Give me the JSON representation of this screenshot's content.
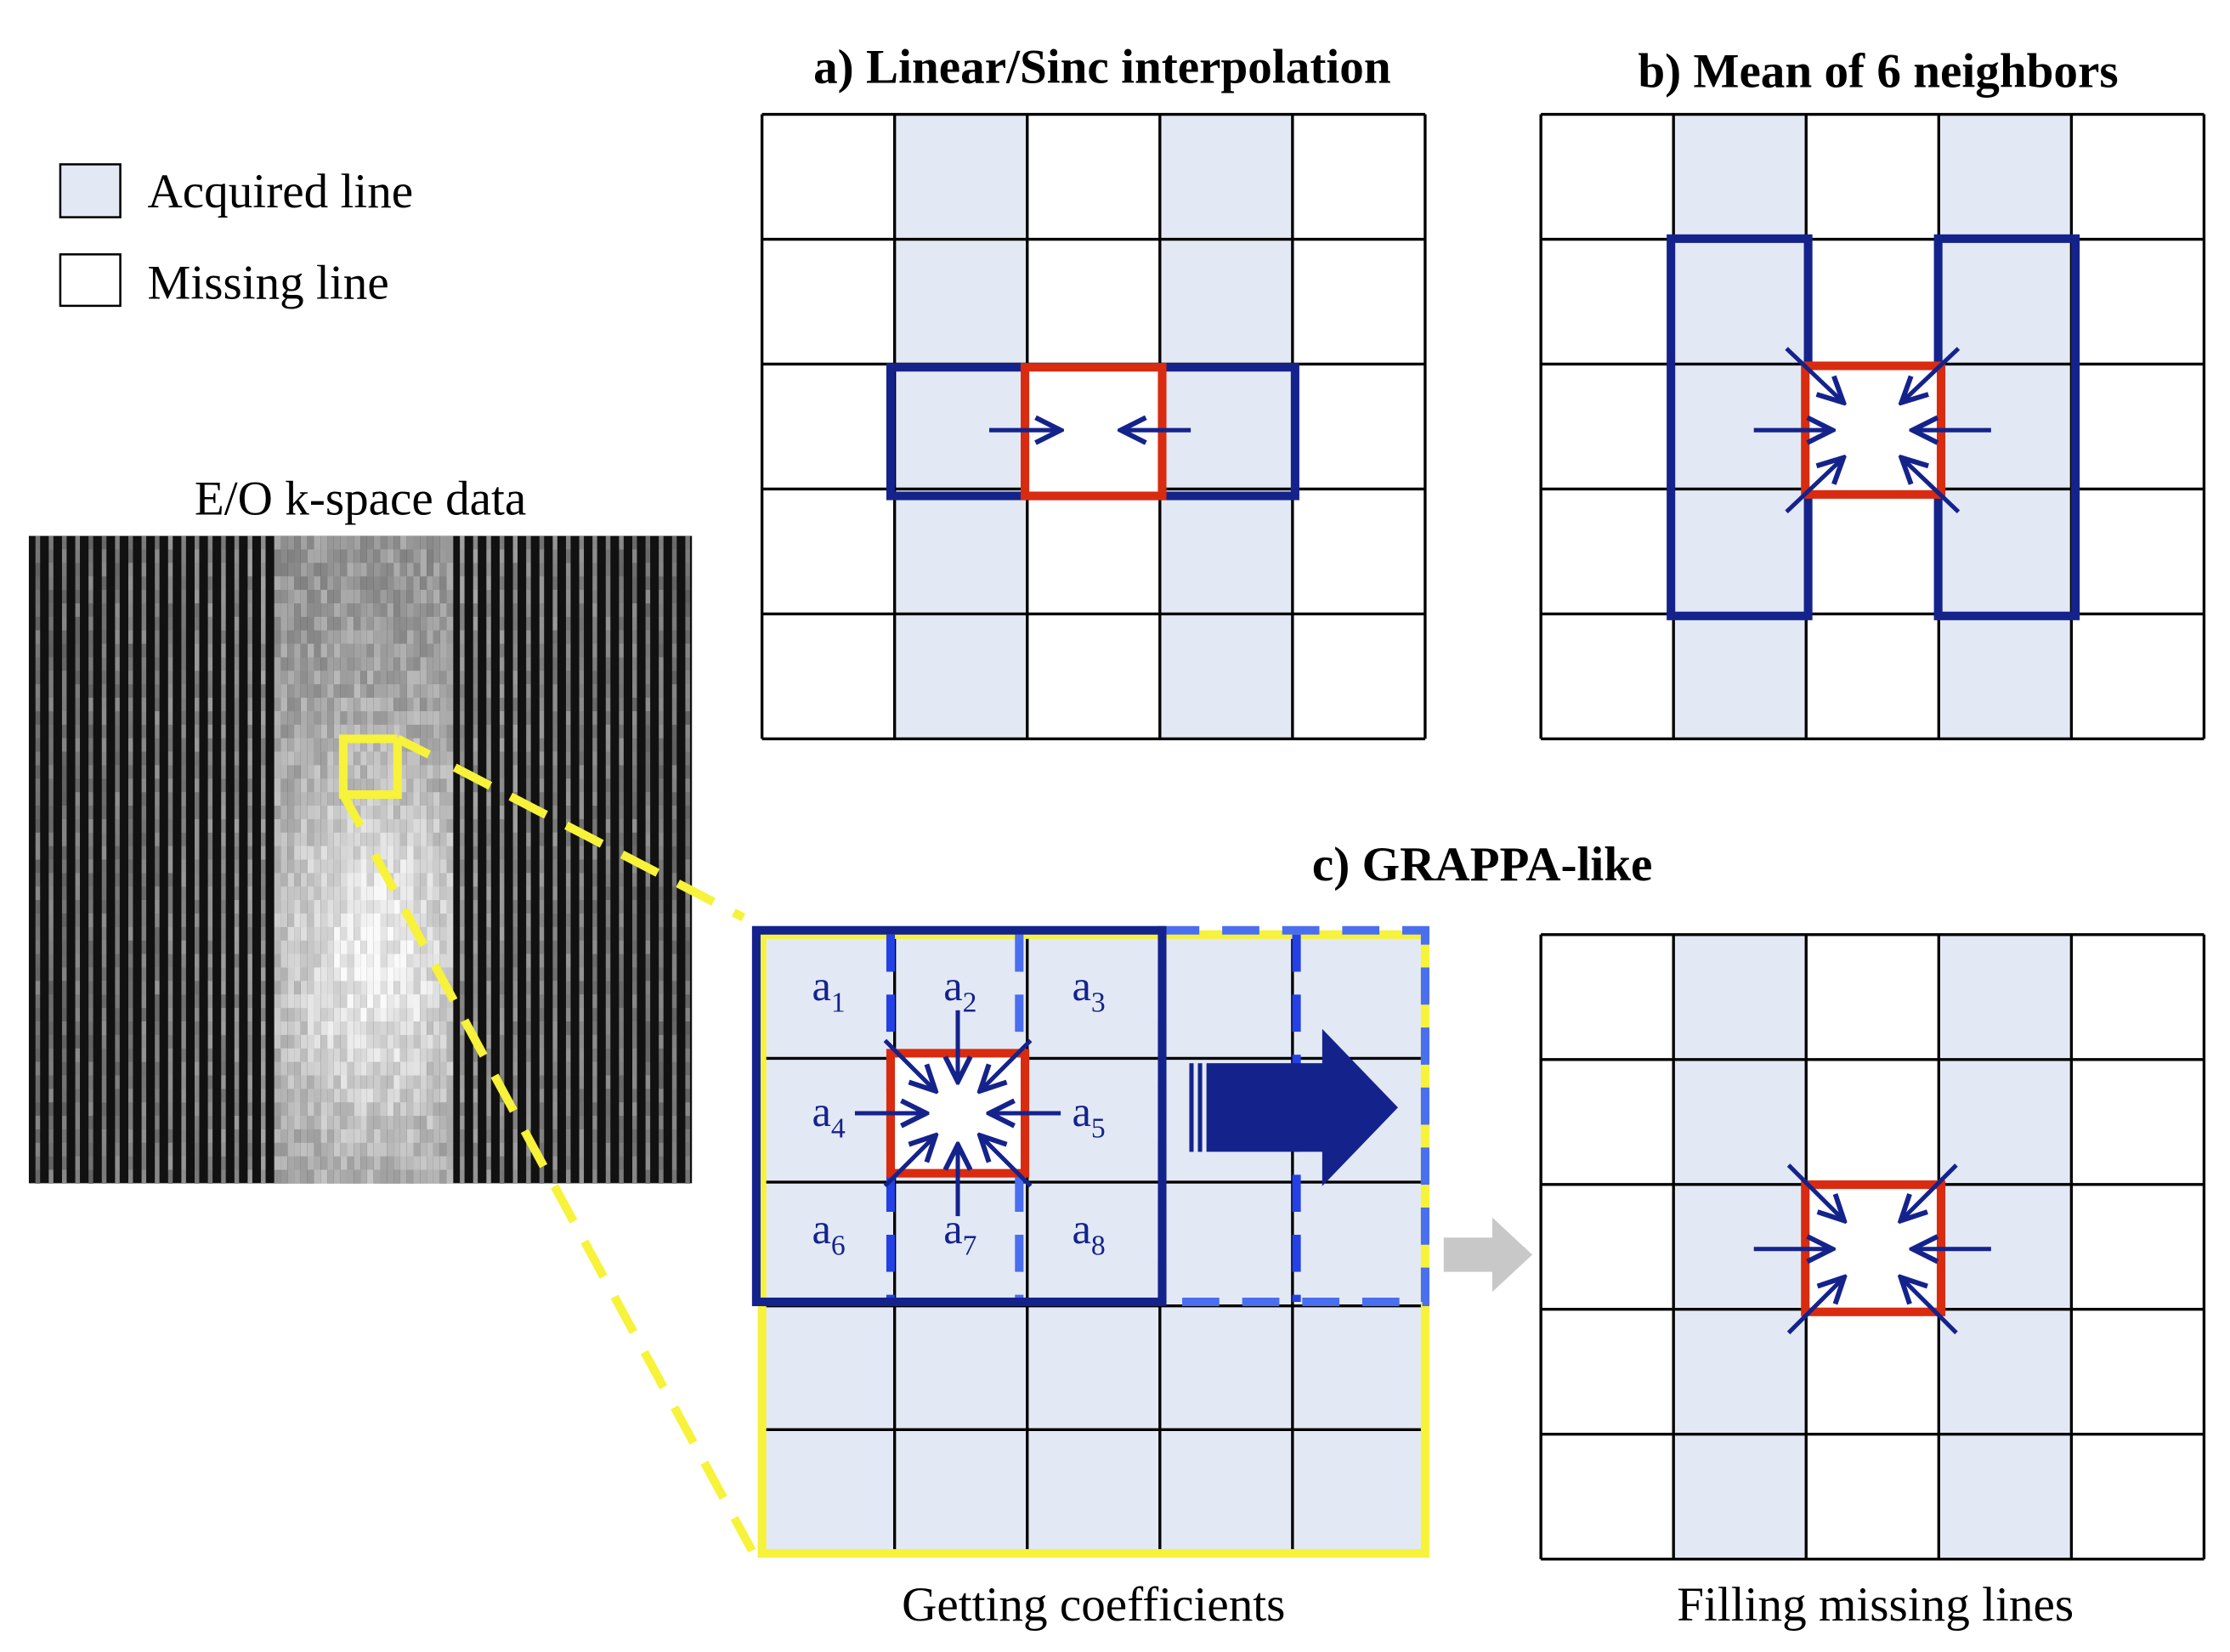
{
  "legend": {
    "acquired_label": "Acquired line",
    "missing_label": "Missing line"
  },
  "kspace": {
    "title": "E/O k-space data"
  },
  "panel_a": {
    "title": "a) Linear/Sinc interpolation"
  },
  "panel_b": {
    "title": "b) Mean of 6 neighbors"
  },
  "panel_c": {
    "title": "c) GRAPPA-like",
    "left_caption": "Getting coefficients",
    "right_caption": "Filling missing lines",
    "coefficients": [
      {
        "base": "a",
        "sub": "1"
      },
      {
        "base": "a",
        "sub": "2"
      },
      {
        "base": "a",
        "sub": "3"
      },
      {
        "base": "a",
        "sub": "4"
      },
      {
        "base": "a",
        "sub": "5"
      },
      {
        "base": "a",
        "sub": "6"
      },
      {
        "base": "a",
        "sub": "7"
      },
      {
        "base": "a",
        "sub": "8"
      }
    ]
  },
  "colors": {
    "acquired_fill": "#e3e9f4",
    "grid_line": "#000000",
    "kernel_blue": "#14238c",
    "dashed_blue": "#4a6ef0",
    "target_red": "#d92b10",
    "highlight_yellow": "#f7f23a",
    "gray_arrow": "#c8c8c8"
  }
}
